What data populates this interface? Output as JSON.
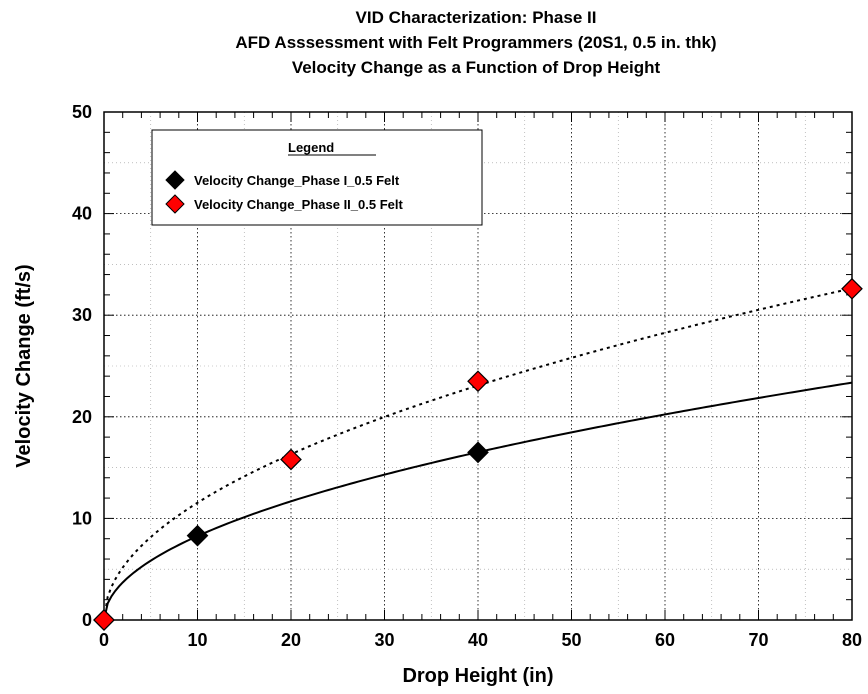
{
  "chart_data": {
    "type": "scatter",
    "title_lines": [
      "VID Characterization:  Phase II",
      "AFD Asssessment with Felt Programmers (20S1, 0.5 in. thk)",
      "Velocity Change as a Function of Drop Height"
    ],
    "xlabel": "Drop Height  (in)",
    "ylabel": "Velocity Change  (ft/s)",
    "xlim": [
      0,
      80
    ],
    "ylim": [
      0,
      50
    ],
    "x_ticks": [
      0,
      10,
      20,
      30,
      40,
      50,
      60,
      70,
      80
    ],
    "y_ticks": [
      0,
      10,
      20,
      30,
      40,
      50
    ],
    "grid": true,
    "legend": {
      "title": "Legend",
      "placement": "top-left",
      "entries": [
        "Velocity Change_Phase I_0.5  Felt",
        "Velocity Change_Phase II_0.5  Felt"
      ]
    },
    "series": [
      {
        "name": "Velocity Change_Phase I_0.5  Felt",
        "color": "#000000",
        "fit_line": "solid",
        "x": [
          0,
          10,
          40
        ],
        "y": [
          0,
          8.3,
          16.5
        ]
      },
      {
        "name": "Velocity Change_Phase II_0.5  Felt",
        "color": "#ff0000",
        "fit_line": "dotted",
        "x": [
          0,
          20,
          40,
          80
        ],
        "y": [
          0,
          15.8,
          23.5,
          32.6
        ]
      }
    ]
  }
}
